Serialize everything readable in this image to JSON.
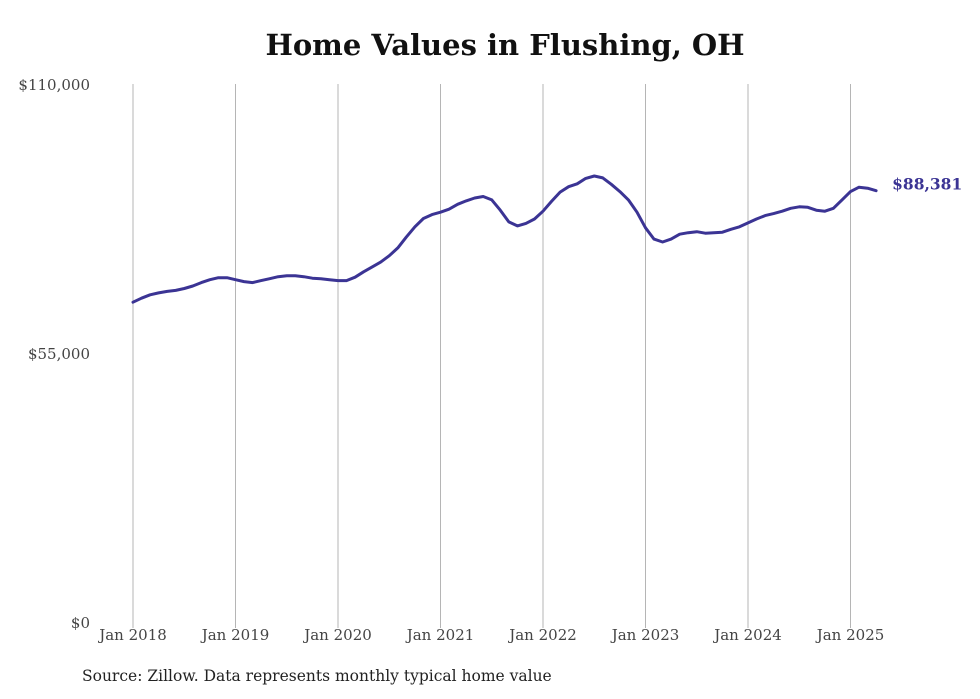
{
  "chart_data": {
    "type": "line",
    "title": "Home Values in Flushing, OH",
    "xlabel": "",
    "ylabel": "",
    "ylim": [
      0,
      110000
    ],
    "y_ticks": [
      0,
      55000,
      110000
    ],
    "y_tick_labels": [
      "$0",
      "$55,000",
      "$110,000"
    ],
    "x_ticks": [
      "2018-01",
      "2019-01",
      "2020-01",
      "2021-01",
      "2022-01",
      "2023-01",
      "2024-01",
      "2025-01"
    ],
    "x_tick_labels": [
      "Jan 2018",
      "Jan 2019",
      "Jan 2020",
      "Jan 2021",
      "Jan 2022",
      "Jan 2023",
      "Jan 2024",
      "Jan 2025"
    ],
    "grid": "vertical",
    "line_color": "#3b3494",
    "end_label": "$88,381",
    "series": [
      {
        "x": [
          "2018-01",
          "2018-02",
          "2018-03",
          "2018-04",
          "2018-05",
          "2018-06",
          "2018-07",
          "2018-08",
          "2018-09",
          "2018-10",
          "2018-11",
          "2018-12",
          "2019-01",
          "2019-02",
          "2019-03",
          "2019-04",
          "2019-05",
          "2019-06",
          "2019-07",
          "2019-08",
          "2019-09",
          "2019-10",
          "2019-11",
          "2019-12",
          "2020-01",
          "2020-02",
          "2020-03",
          "2020-04",
          "2020-05",
          "2020-06",
          "2020-07",
          "2020-08",
          "2020-09",
          "2020-10",
          "2020-11",
          "2020-12",
          "2021-01",
          "2021-02",
          "2021-03",
          "2021-04",
          "2021-05",
          "2021-06",
          "2021-07",
          "2021-08",
          "2021-09",
          "2021-10",
          "2021-11",
          "2021-12",
          "2022-01",
          "2022-02",
          "2022-03",
          "2022-04",
          "2022-05",
          "2022-06",
          "2022-07",
          "2022-08",
          "2022-09",
          "2022-10",
          "2022-11",
          "2022-12",
          "2023-01",
          "2023-02",
          "2023-03",
          "2023-04",
          "2023-05",
          "2023-06",
          "2023-07",
          "2023-08",
          "2023-09",
          "2023-10",
          "2023-11",
          "2023-12",
          "2024-01",
          "2024-02",
          "2024-03",
          "2024-04",
          "2024-05",
          "2024-06",
          "2024-07",
          "2024-08",
          "2024-09",
          "2024-10",
          "2024-11",
          "2024-12",
          "2025-01",
          "2025-02",
          "2025-03",
          "2025-04"
        ],
        "values": [
          65600,
          66400,
          67100,
          67500,
          67800,
          68000,
          68400,
          68900,
          69600,
          70200,
          70600,
          70600,
          70200,
          69800,
          69600,
          70000,
          70400,
          70800,
          71000,
          71000,
          70800,
          70500,
          70400,
          70200,
          70000,
          70000,
          70700,
          71800,
          72800,
          73800,
          75100,
          76700,
          78900,
          81000,
          82700,
          83500,
          84000,
          84600,
          85600,
          86300,
          86900,
          87200,
          86500,
          84400,
          82000,
          81200,
          81700,
          82600,
          84200,
          86200,
          88100,
          89200,
          89800,
          90900,
          91400,
          91000,
          89700,
          88200,
          86500,
          84000,
          80800,
          78500,
          77900,
          78500,
          79500,
          79800,
          80000,
          79700,
          79800,
          79900,
          80500,
          81000,
          81800,
          82600,
          83300,
          83700,
          84200,
          84800,
          85100,
          85000,
          84400,
          84200,
          84800,
          86500,
          88200,
          89100,
          88900,
          88381
        ]
      }
    ]
  },
  "source_note": "Source: Zillow. Data represents monthly typical home value"
}
